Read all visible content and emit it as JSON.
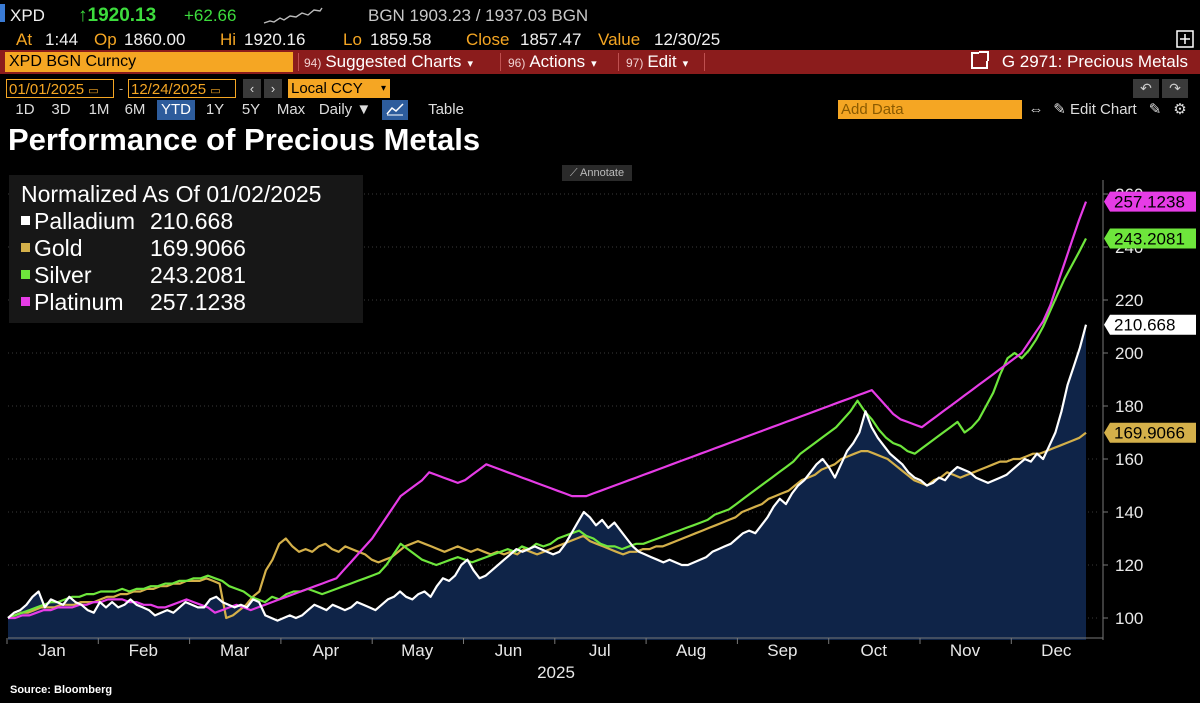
{
  "quote": {
    "ticker": "XPD",
    "last": "↑1920.13",
    "change": "+62.66",
    "bgn": "BGN 1903.23 / 1937.03 BGN",
    "at_label": "At",
    "at_value": "1:44",
    "op_label": "Op",
    "op_value": "1860.00",
    "hi_label": "Hi",
    "hi_value": "1920.16",
    "lo_label": "Lo",
    "lo_value": "1859.58",
    "close_label": "Close",
    "close_value": "1857.47",
    "value_label": "Value",
    "value_value": "12/30/25"
  },
  "command": {
    "security": "XPD BGN Curncy",
    "menus": [
      {
        "num": "94)",
        "label": "Suggested Charts"
      },
      {
        "num": "96)",
        "label": "Actions"
      },
      {
        "num": "97)",
        "label": "Edit"
      }
    ],
    "graph_title": "G 2971: Precious Metals"
  },
  "dates": {
    "start": "01/01/2025",
    "end": "12/24/2025",
    "currency": "Local CCY"
  },
  "toolbar": {
    "periods": [
      "1D",
      "3D",
      "1M",
      "6M",
      "YTD",
      "1Y",
      "5Y",
      "Max"
    ],
    "active_period": "YTD",
    "frequency": "Daily ▼",
    "table_label": "Table",
    "add_data_placeholder": "Add Data",
    "edit_chart_label": "Edit Chart"
  },
  "chart_data": {
    "type": "line",
    "title": "Performance of Precious Metals",
    "annotate_label": "Annotate",
    "normalized_label": "Normalized As Of 01/02/2025",
    "x_labels": [
      "Jan",
      "Feb",
      "Mar",
      "Apr",
      "May",
      "Jun",
      "Jul",
      "Aug",
      "Sep",
      "Oct",
      "Nov",
      "Dec"
    ],
    "xlabel": "2025",
    "ylim": [
      95,
      263
    ],
    "yticks": [
      100,
      120,
      140,
      160,
      180,
      200,
      220,
      240,
      260
    ],
    "series": [
      {
        "name": "Palladium",
        "color": "#ffffff",
        "last": "210.668",
        "area": true,
        "values": [
          100,
          102,
          103,
          105,
          108,
          110,
          104,
          107,
          106,
          105,
          108,
          106,
          105,
          103,
          102,
          106,
          104,
          106,
          104,
          105,
          107,
          105,
          104,
          103,
          101,
          102,
          103,
          102,
          104,
          106,
          105,
          104,
          104,
          107,
          108,
          106,
          105,
          104,
          105,
          104,
          107,
          106,
          101,
          100,
          99,
          100,
          101,
          100,
          101,
          103,
          105,
          104,
          103,
          105,
          104,
          103,
          104,
          106,
          105,
          104,
          103,
          105,
          107,
          108,
          110,
          108,
          107,
          109,
          110,
          108,
          112,
          115,
          114,
          116,
          120,
          122,
          118,
          115,
          116,
          118,
          120,
          122,
          124,
          126,
          125,
          126,
          127,
          126,
          125,
          124,
          125,
          128,
          132,
          136,
          140,
          138,
          135,
          137,
          134,
          136,
          133,
          130,
          127,
          125,
          124,
          123,
          122,
          121,
          122,
          121,
          120,
          120,
          121,
          122,
          123,
          125,
          126,
          127,
          128,
          130,
          132,
          133,
          132,
          135,
          138,
          142,
          145,
          143,
          147,
          150,
          152,
          155,
          158,
          160,
          157,
          153,
          158,
          163,
          166,
          170,
          178,
          172,
          168,
          165,
          162,
          160,
          158,
          155,
          153,
          152,
          150,
          151,
          153,
          152,
          155,
          157,
          156,
          155,
          153,
          152,
          151,
          152,
          153,
          154,
          156,
          158,
          160,
          159,
          162,
          160,
          165,
          170,
          178,
          188,
          195,
          202,
          210.668
        ]
      },
      {
        "name": "Gold",
        "color": "#d4b04a",
        "last": "169.9066",
        "area": false,
        "values": [
          100,
          101,
          102,
          102,
          103,
          104,
          104,
          104,
          105,
          105,
          105,
          106,
          106,
          106,
          107,
          108,
          108,
          109,
          109,
          110,
          110,
          111,
          111,
          112,
          112,
          113,
          113,
          114,
          114,
          114,
          115,
          114,
          113,
          100,
          101,
          103,
          105,
          108,
          110,
          118,
          122,
          128,
          130,
          127,
          125,
          126,
          125,
          127,
          128,
          126,
          125,
          127,
          126,
          125,
          124,
          122,
          121,
          122,
          123,
          125,
          127,
          128,
          129,
          128,
          127,
          126,
          125,
          126,
          127,
          126,
          125,
          126,
          125,
          124,
          125,
          124,
          125,
          124,
          126,
          125,
          124,
          125,
          126,
          127,
          128,
          129,
          130,
          131,
          129,
          128,
          127,
          126,
          125,
          124,
          125,
          125,
          126,
          126,
          127,
          127,
          128,
          129,
          130,
          131,
          132,
          133,
          134,
          135,
          136,
          137,
          138,
          140,
          141,
          142,
          143,
          145,
          146,
          147,
          148,
          150,
          152,
          153,
          154,
          156,
          157,
          158,
          160,
          161,
          162,
          163,
          163,
          162,
          161,
          160,
          158,
          156,
          154,
          152,
          151,
          150,
          152,
          153,
          155,
          154,
          153,
          154,
          155,
          156,
          157,
          158,
          159,
          159,
          160,
          160,
          161,
          162,
          162,
          163,
          164,
          165,
          166,
          167,
          168,
          169.9066
        ]
      },
      {
        "name": "Silver",
        "color": "#6ee63c",
        "last": "243.2081",
        "area": false,
        "values": [
          100,
          101,
          102,
          103,
          104,
          105,
          106,
          106,
          107,
          108,
          108,
          109,
          109,
          110,
          110,
          110,
          111,
          110,
          111,
          111,
          112,
          112,
          113,
          113,
          114,
          114,
          115,
          115,
          116,
          115,
          114,
          112,
          111,
          110,
          108,
          107,
          106,
          108,
          107,
          109,
          110,
          110,
          111,
          110,
          109,
          110,
          111,
          112,
          113,
          114,
          115,
          116,
          117,
          120,
          124,
          128,
          126,
          124,
          122,
          121,
          120,
          121,
          122,
          123,
          122,
          121,
          122,
          123,
          124,
          125,
          126,
          125,
          127,
          126,
          128,
          127,
          128,
          130,
          131,
          132,
          133,
          131,
          130,
          128,
          127,
          127,
          126,
          127,
          128,
          128,
          129,
          130,
          131,
          132,
          133,
          134,
          135,
          136,
          137,
          139,
          140,
          141,
          143,
          145,
          147,
          149,
          151,
          153,
          155,
          157,
          159,
          162,
          164,
          166,
          168,
          170,
          172,
          175,
          178,
          182,
          178,
          175,
          171,
          168,
          166,
          165,
          163,
          162,
          164,
          166,
          168,
          170,
          172,
          174,
          170,
          172,
          175,
          180,
          185,
          192,
          198,
          200,
          198,
          201,
          205,
          210,
          216,
          222,
          228,
          233,
          238,
          243.2081
        ]
      },
      {
        "name": "Platinum",
        "color": "#e63ce6",
        "last": "257.1238",
        "area": false,
        "values": [
          100,
          100,
          101,
          101,
          102,
          103,
          103,
          104,
          104,
          104,
          105,
          105,
          106,
          106,
          107,
          107,
          107,
          106,
          106,
          105,
          105,
          104,
          104,
          105,
          106,
          107,
          106,
          105,
          104,
          102,
          103,
          104,
          105,
          104,
          103,
          104,
          105,
          106,
          107,
          108,
          109,
          110,
          111,
          112,
          113,
          114,
          115,
          118,
          121,
          124,
          127,
          130,
          134,
          138,
          142,
          146,
          148,
          150,
          152,
          155,
          154,
          153,
          152,
          151,
          152,
          154,
          156,
          158,
          157,
          156,
          155,
          154,
          153,
          152,
          151,
          150,
          149,
          148,
          147,
          146,
          146,
          146,
          147,
          148,
          149,
          150,
          151,
          152,
          153,
          154,
          155,
          156,
          157,
          158,
          159,
          160,
          161,
          162,
          163,
          164,
          165,
          166,
          167,
          168,
          169,
          170,
          171,
          172,
          173,
          174,
          175,
          176,
          177,
          178,
          179,
          180,
          181,
          182,
          183,
          184,
          185,
          186,
          183,
          180,
          177,
          175,
          174,
          173,
          172,
          174,
          176,
          178,
          180,
          182,
          184,
          186,
          188,
          190,
          192,
          194,
          196,
          198,
          200,
          204,
          208,
          212,
          218,
          226,
          234,
          242,
          250,
          257.1238
        ]
      }
    ]
  },
  "source": "Source: Bloomberg"
}
